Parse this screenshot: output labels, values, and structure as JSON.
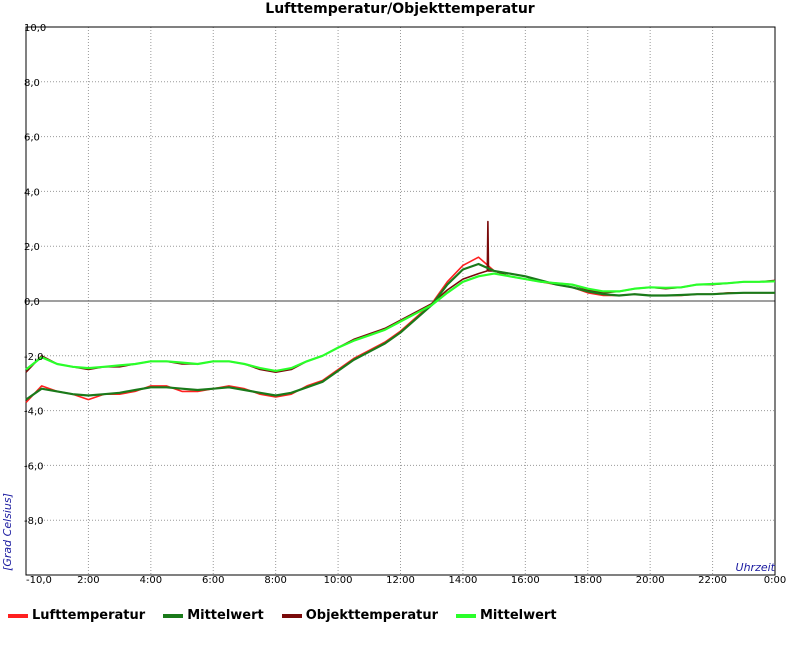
{
  "chart_data": {
    "type": "line",
    "title": "Lufttemperatur/Objekttemperatur",
    "xlabel": "Uhrzeit",
    "ylabel": "[Grad Celsius]",
    "x_range": [
      "00:00",
      "24:00"
    ],
    "ylim": [
      -10,
      10
    ],
    "grid": true,
    "legend_position": "bottom",
    "y_tick_labels": [
      "-10,0",
      "-8,0",
      "-6,0",
      "-4,0",
      "-2,0",
      "0,0",
      "2,0",
      "4,0",
      "6,0",
      "8,0",
      "10,0"
    ],
    "y_tick_values": [
      -10,
      -8,
      -6,
      -4,
      -2,
      0,
      2,
      4,
      6,
      8,
      10
    ],
    "x_tick_labels": [
      "2:00",
      "4:00",
      "6:00",
      "8:00",
      "10:00",
      "12:00",
      "14:00",
      "16:00",
      "18:00",
      "20:00",
      "22:00",
      "0:00"
    ],
    "x_tick_hours": [
      2,
      4,
      6,
      8,
      10,
      12,
      14,
      16,
      18,
      20,
      22,
      24
    ],
    "x": [
      0,
      0.5,
      1,
      1.5,
      2,
      2.5,
      3,
      3.5,
      4,
      4.5,
      5,
      5.5,
      6,
      6.5,
      7,
      7.5,
      8,
      8.5,
      9,
      9.5,
      10,
      10.5,
      11,
      11.5,
      12,
      12.5,
      13,
      13.5,
      14,
      14.5,
      15,
      15.5,
      16,
      16.5,
      17,
      17.5,
      18,
      18.5,
      19,
      19.5,
      20,
      20.5,
      21,
      21.5,
      22,
      22.5,
      23,
      23.5,
      24
    ],
    "series": [
      {
        "name": "Lufttemperatur",
        "color": "#ff2020",
        "values": [
          -3.7,
          -3.1,
          -3.3,
          -3.4,
          -3.6,
          -3.4,
          -3.4,
          -3.3,
          -3.1,
          -3.1,
          -3.3,
          -3.3,
          -3.2,
          -3.1,
          -3.2,
          -3.4,
          -3.5,
          -3.4,
          -3.1,
          -2.9,
          -2.5,
          -2.1,
          -1.8,
          -1.5,
          -1.1,
          -0.6,
          -0.1,
          0.7,
          1.3,
          1.6,
          1.1,
          1.0,
          0.9,
          0.7,
          0.6,
          0.5,
          0.3,
          0.2,
          0.2,
          0.25,
          0.2,
          0.2,
          0.2,
          0.25,
          0.25,
          0.3,
          0.3,
          0.3,
          0.3
        ]
      },
      {
        "name": "Mittelwert",
        "color": "#1a7a1a",
        "values": [
          -3.6,
          -3.2,
          -3.3,
          -3.4,
          -3.45,
          -3.4,
          -3.35,
          -3.25,
          -3.15,
          -3.15,
          -3.2,
          -3.25,
          -3.2,
          -3.15,
          -3.25,
          -3.35,
          -3.45,
          -3.35,
          -3.15,
          -2.95,
          -2.55,
          -2.15,
          -1.85,
          -1.55,
          -1.15,
          -0.65,
          -0.15,
          0.6,
          1.15,
          1.35,
          1.1,
          1.0,
          0.9,
          0.75,
          0.6,
          0.5,
          0.35,
          0.25,
          0.2,
          0.25,
          0.2,
          0.2,
          0.22,
          0.25,
          0.25,
          0.28,
          0.3,
          0.3,
          0.3
        ]
      },
      {
        "name": "Objekttemperatur",
        "color": "#7a0a0a",
        "values": [
          -2.6,
          -2.0,
          -2.3,
          -2.4,
          -2.5,
          -2.4,
          -2.4,
          -2.3,
          -2.2,
          -2.2,
          -2.3,
          -2.3,
          -2.2,
          -2.2,
          -2.3,
          -2.5,
          -2.6,
          -2.5,
          -2.2,
          -2.0,
          -1.7,
          -1.4,
          -1.2,
          -1.0,
          -0.7,
          -0.4,
          -0.1,
          0.4,
          0.8,
          1.0,
          1.1,
          0.9,
          0.8,
          0.7,
          0.65,
          0.6,
          0.4,
          0.3,
          0.35,
          0.45,
          0.5,
          0.45,
          0.5,
          0.6,
          0.6,
          0.65,
          0.7,
          0.7,
          0.75
        ]
      },
      {
        "name": "Mittelwert",
        "color": "#2aff2a",
        "values": [
          -2.5,
          -2.05,
          -2.3,
          -2.4,
          -2.45,
          -2.4,
          -2.35,
          -2.3,
          -2.2,
          -2.2,
          -2.25,
          -2.3,
          -2.2,
          -2.2,
          -2.3,
          -2.45,
          -2.55,
          -2.45,
          -2.2,
          -2.0,
          -1.7,
          -1.45,
          -1.25,
          -1.05,
          -0.75,
          -0.45,
          -0.15,
          0.3,
          0.7,
          0.9,
          1.0,
          0.9,
          0.8,
          0.7,
          0.65,
          0.6,
          0.45,
          0.35,
          0.35,
          0.45,
          0.5,
          0.48,
          0.5,
          0.6,
          0.62,
          0.65,
          0.7,
          0.7,
          0.72
        ]
      }
    ],
    "annotations": [
      {
        "series": "Objekttemperatur",
        "x": 14.8,
        "peak": 2.9
      }
    ]
  }
}
